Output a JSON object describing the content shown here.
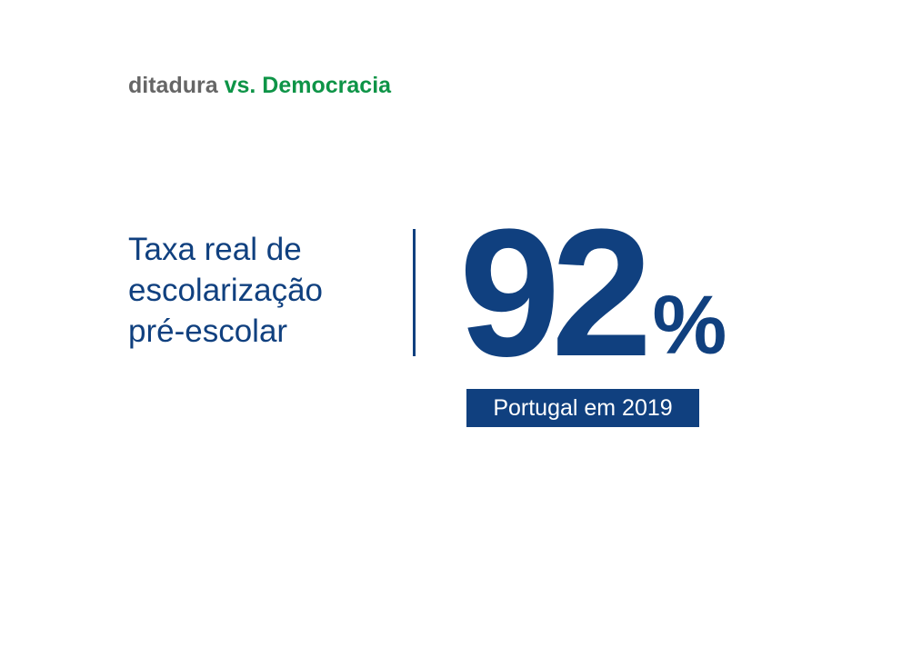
{
  "header": {
    "word_a": "ditadura",
    "word_b": "vs.",
    "word_c": "Democracia"
  },
  "metric": {
    "label_lines": [
      "Taxa real de",
      "escolarização",
      "pré-escolar"
    ],
    "value": "92",
    "unit": "%",
    "caption": "Portugal em 2019"
  },
  "colors": {
    "primary_blue": "#10407f",
    "accent_green": "#0e9447",
    "muted_gray": "#666666"
  }
}
